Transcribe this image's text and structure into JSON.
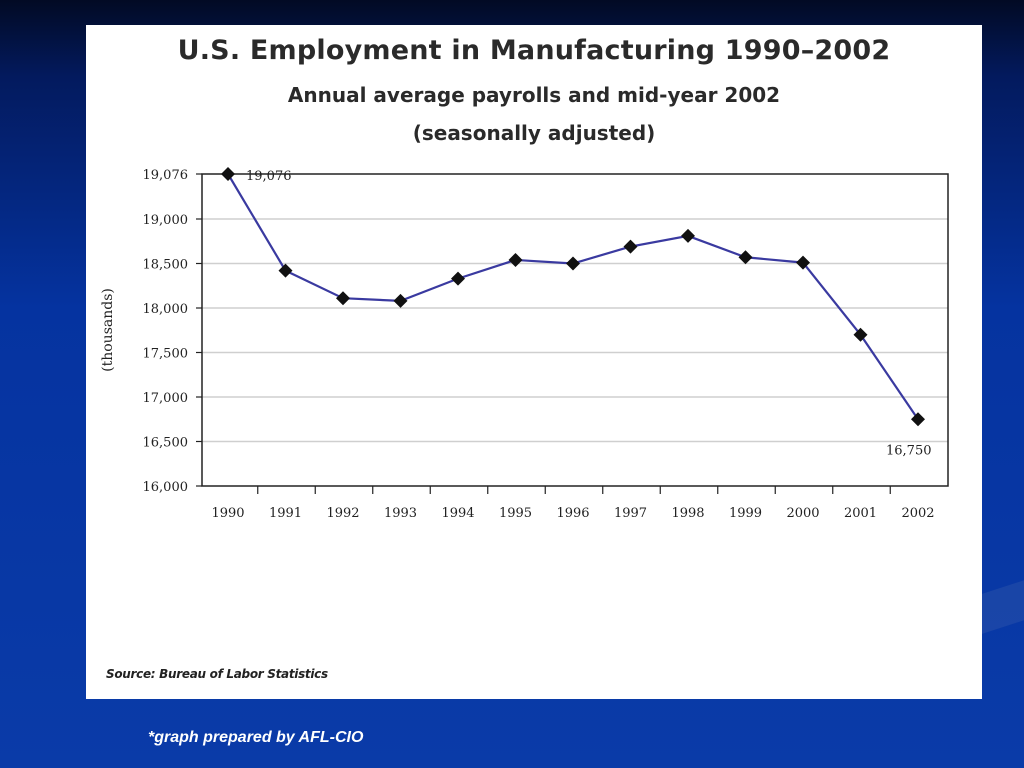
{
  "footnote": "*graph prepared by AFL-CIO",
  "source": "Source: Bureau of Labor Statistics",
  "colors": {
    "line": "#3a3aa0",
    "marker": "#111111",
    "grid": "#cfcfcf",
    "background": "#0533a0"
  },
  "chart_data": {
    "type": "line",
    "title": "U.S. Employment in Manufacturing 1990–2002",
    "subtitle": [
      "Annual average payrolls and mid-year 2002",
      "(seasonally adjusted)"
    ],
    "xlabel": "",
    "ylabel": "(thousands)",
    "ylim": [
      16000,
      19076
    ],
    "yticks": [
      16000,
      16500,
      17000,
      17500,
      18000,
      18500,
      19000,
      19076
    ],
    "ytick_labels": [
      "16,000",
      "16,500",
      "17,000",
      "17,500",
      "18,000",
      "18,500",
      "19,000",
      "19,076"
    ],
    "grid": true,
    "categories": [
      "1990",
      "1991",
      "1992",
      "1993",
      "1994",
      "1995",
      "1996",
      "1997",
      "1998",
      "1999",
      "2000",
      "2001",
      "2002"
    ],
    "values": [
      19076,
      18420,
      18110,
      18080,
      18330,
      18540,
      18500,
      18690,
      18810,
      18570,
      18510,
      17700,
      16750
    ],
    "annotations": [
      {
        "index": 0,
        "text": "19,076"
      },
      {
        "index": 12,
        "text": "16,750"
      }
    ]
  }
}
